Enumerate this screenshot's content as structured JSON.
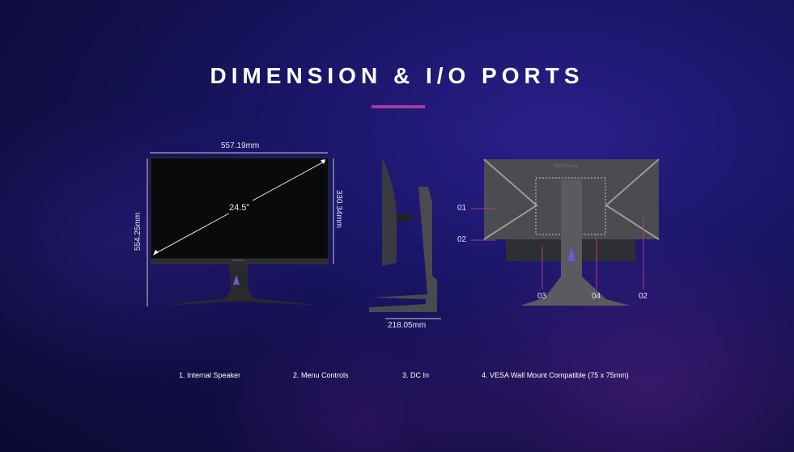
{
  "title": "DIMENSION & I/O PORTS",
  "accent_color": "#a23c9a",
  "front": {
    "width": "557.19mm",
    "height_total": "554.25mm",
    "height_panel": "330.34mm",
    "diagonal": "24.5\"",
    "logo": "ViewSonic"
  },
  "side": {
    "depth": "218.05mm"
  },
  "back": {
    "logo": "ViewSonic",
    "callouts": [
      "01",
      "02",
      "03",
      "04",
      "02"
    ]
  },
  "legend": [
    "1. Internal Speaker",
    "2. Menu Controls",
    "3. DC In",
    "4. VESA Wall Mount Compatible (75 x 75mm)"
  ]
}
